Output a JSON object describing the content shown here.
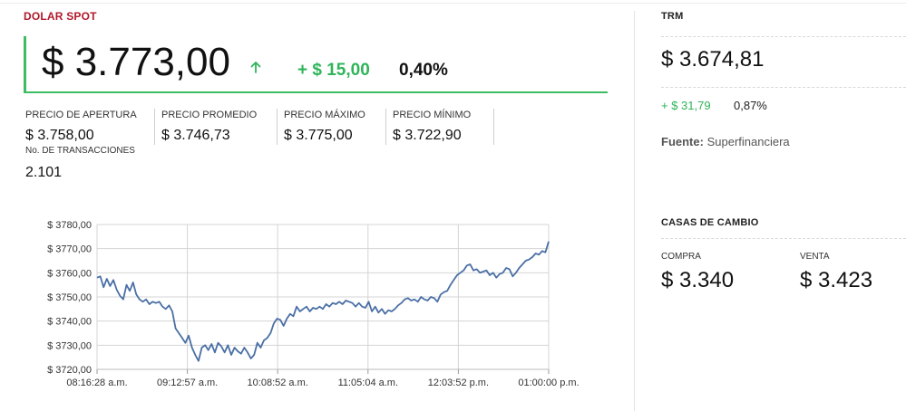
{
  "dolar_spot": {
    "section_title": "DOLAR SPOT",
    "price": "$ 3.773,00",
    "change": "+ $ 15,00",
    "change_pct": "0,40%",
    "stats": [
      {
        "label": "PRECIO DE APERTURA",
        "value": "$ 3.758,00"
      },
      {
        "label": "PRECIO PROMEDIO",
        "value": "$ 3.746,73"
      },
      {
        "label": "PRECIO MÁXIMO",
        "value": "$ 3.775,00"
      },
      {
        "label": "PRECIO MÍNIMO",
        "value": "$ 3.722,90"
      }
    ],
    "transactions_label": "No. DE TRANSACCIONES",
    "transactions_value": "2.101"
  },
  "trm": {
    "title": "TRM",
    "value": "$ 3.674,81",
    "change": "+ $ 31,79",
    "change_pct": "0,87%",
    "source_label": "Fuente:",
    "source_value": "Superfinanciera"
  },
  "casas_de_cambio": {
    "title": "CASAS DE CAMBIO",
    "buy_label": "COMPRA",
    "buy_value": "$ 3.340",
    "sell_label": "VENTA",
    "sell_value": "$ 3.423"
  },
  "colors": {
    "up": "#2fb45a",
    "brand": "#b0182b",
    "line": "#4a6fa5"
  },
  "chart_data": {
    "type": "line",
    "title": "",
    "xlabel": "",
    "ylabel": "",
    "grid": true,
    "legend": "none",
    "x_ticks": [
      "08:16:28 a.m.",
      "09:12:57 a.m.",
      "10:08:52 a.m.",
      "11:05:04 a.m.",
      "12:03:52 p.m.",
      "01:00:00 p.m."
    ],
    "y_ticks": [
      "$ 3720,00",
      "$ 3730,00",
      "$ 3740,00",
      "$ 3750,00",
      "$ 3760,00",
      "$ 3770,00",
      "$ 3780,00"
    ],
    "ylim": [
      3720,
      3780
    ],
    "x_start": "08:16:28 a.m.",
    "x_end": "01:00:00 p.m.",
    "series": [
      {
        "color": "#4a6fa5",
        "values": [
          3758.0,
          3758.5,
          3754.0,
          3757.5,
          3754.5,
          3757.0,
          3753.0,
          3750.5,
          3749.0,
          3755.0,
          3752.5,
          3756.0,
          3751.0,
          3749.0,
          3748.0,
          3749.0,
          3747.0,
          3748.0,
          3747.5,
          3748.0,
          3746.0,
          3745.0,
          3746.5,
          3744.0,
          3737.0,
          3735.0,
          3733.0,
          3731.0,
          3734.0,
          3729.0,
          3726.0,
          3723.5,
          3729.0,
          3730.0,
          3728.0,
          3730.5,
          3727.0,
          3731.0,
          3729.5,
          3727.0,
          3730.0,
          3726.0,
          3729.0,
          3727.5,
          3726.5,
          3729.0,
          3727.0,
          3724.5,
          3726.0,
          3731.0,
          3729.0,
          3732.0,
          3733.0,
          3735.0,
          3739.0,
          3741.0,
          3740.5,
          3738.0,
          3741.0,
          3743.0,
          3742.0,
          3746.0,
          3744.0,
          3745.0,
          3746.0,
          3744.0,
          3745.5,
          3745.0,
          3746.0,
          3745.0,
          3747.0,
          3746.0,
          3747.5,
          3747.0,
          3748.0,
          3747.0,
          3748.5,
          3748.0,
          3747.5,
          3746.0,
          3747.5,
          3746.0,
          3745.5,
          3748.0,
          3744.0,
          3746.0,
          3743.5,
          3745.0,
          3743.0,
          3744.5,
          3744.0,
          3745.0,
          3746.5,
          3747.5,
          3749.0,
          3749.5,
          3748.5,
          3749.0,
          3748.0,
          3750.0,
          3749.0,
          3748.5,
          3750.0,
          3749.5,
          3748.0,
          3751.0,
          3752.0,
          3752.5,
          3755.0,
          3757.0,
          3759.0,
          3760.0,
          3761.0,
          3763.0,
          3763.5,
          3761.0,
          3761.5,
          3760.0,
          3760.5,
          3761.0,
          3759.0,
          3760.0,
          3758.0,
          3759.5,
          3760.0,
          3762.0,
          3761.5,
          3758.5,
          3760.0,
          3762.0,
          3763.5,
          3765.0,
          3765.5,
          3766.5,
          3768.0,
          3767.5,
          3769.0,
          3768.5,
          3773.0
        ]
      }
    ]
  }
}
